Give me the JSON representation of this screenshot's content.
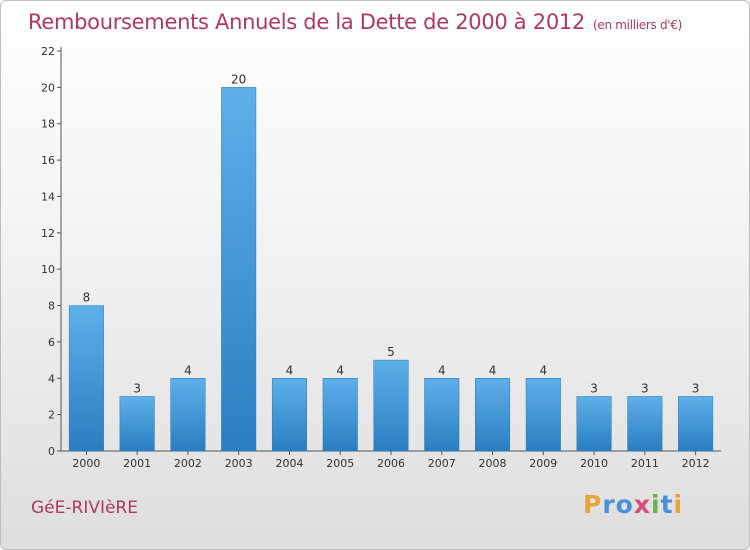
{
  "title": "Remboursements Annuels de la Dette de 2000 à 2012",
  "unit": "(en milliers d'€)",
  "commune": "GéE-RIVIèRE",
  "logo": {
    "letters": [
      "P",
      "r",
      "o",
      "x",
      "i",
      "t",
      "i"
    ],
    "colors": [
      "#e8a33a",
      "#4a90d9",
      "#4a90d9",
      "#d84a7a",
      "#6ab04c",
      "#4a90d9",
      "#e8a33a"
    ]
  },
  "colors": {
    "bar_light": "#5eb0ea",
    "bar_dark": "#2a7ec0",
    "title": "#b0385f"
  },
  "chart_data": {
    "type": "bar",
    "categories": [
      "2000",
      "2001",
      "2002",
      "2003",
      "2004",
      "2005",
      "2006",
      "2007",
      "2008",
      "2009",
      "2010",
      "2011",
      "2012"
    ],
    "values": [
      8,
      3,
      4,
      20,
      4,
      4,
      5,
      4,
      4,
      4,
      3,
      3,
      3
    ],
    "ylim": [
      0,
      22
    ],
    "yticks": [
      0,
      2,
      4,
      6,
      8,
      10,
      12,
      14,
      16,
      18,
      20,
      22
    ],
    "grid": false,
    "data_labels": true
  }
}
